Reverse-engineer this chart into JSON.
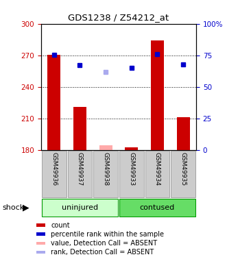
{
  "title": "GDS1238 / Z54212_at",
  "samples": [
    "GSM49936",
    "GSM49937",
    "GSM49938",
    "GSM49933",
    "GSM49934",
    "GSM49935"
  ],
  "groups": [
    "uninjured",
    "uninjured",
    "uninjured",
    "contused",
    "contused",
    "contused"
  ],
  "group_labels": [
    "uninjured",
    "contused"
  ],
  "count_values": [
    270.5,
    221.0,
    184.5,
    182.5,
    284.5,
    211.5
  ],
  "rank_values": [
    75.5,
    67.5,
    62.0,
    65.0,
    76.0,
    68.0
  ],
  "absent": [
    false,
    false,
    true,
    false,
    false,
    false
  ],
  "ylim_left": [
    180,
    300
  ],
  "ylim_right": [
    0,
    100
  ],
  "yticks_left": [
    180,
    210,
    240,
    270,
    300
  ],
  "yticks_right": [
    0,
    25,
    50,
    75,
    100
  ],
  "ytick_labels_right": [
    "0",
    "25",
    "50",
    "75",
    "100%"
  ],
  "bar_color_present": "#cc0000",
  "bar_color_absent": "#ffaaaa",
  "dot_color_present": "#0000cc",
  "dot_color_absent": "#aaaaee",
  "bar_width": 0.5,
  "legend_items": [
    {
      "label": "count",
      "color": "#cc0000"
    },
    {
      "label": "percentile rank within the sample",
      "color": "#0000cc"
    },
    {
      "label": "value, Detection Call = ABSENT",
      "color": "#ffaaaa"
    },
    {
      "label": "rank, Detection Call = ABSENT",
      "color": "#aaaaee"
    }
  ],
  "shock_label": "shock",
  "bg_color": "#ffffff",
  "sample_bg_color": "#cccccc",
  "uninjured_color": "#ccffcc",
  "contused_color": "#66dd66",
  "group_border_color": "#009900"
}
